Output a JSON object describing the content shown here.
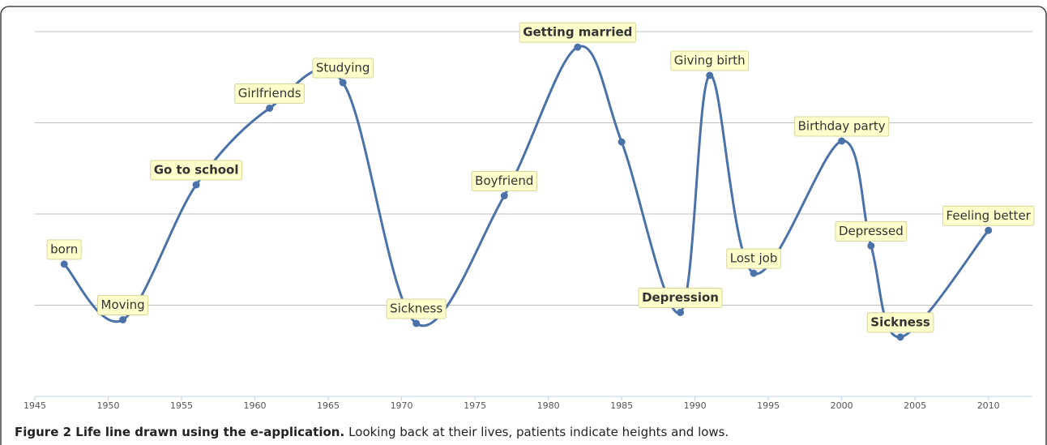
{
  "chart_data": {
    "type": "line",
    "x": [
      1947,
      1951,
      1956,
      1961,
      1966,
      1971,
      1977,
      1982,
      1985,
      1989,
      1991,
      1994,
      2000,
      2002,
      2004,
      2010
    ],
    "values": [
      1.45,
      0.84,
      2.32,
      3.16,
      3.44,
      0.8,
      2.2,
      3.83,
      2.79,
      0.92,
      3.52,
      1.35,
      2.8,
      1.65,
      0.65,
      1.82
    ],
    "labels": [
      "born",
      "Moving",
      "Go to school",
      "Girlfriends",
      "Studying",
      "Sickness",
      "Boyfriend",
      "Getting married",
      null,
      "Depression",
      "Giving birth",
      "Lost job",
      "Birthday party",
      "Depressed",
      "Sickness",
      "Feeling better"
    ],
    "bold_labels": [
      false,
      false,
      true,
      false,
      false,
      false,
      false,
      true,
      false,
      true,
      false,
      false,
      false,
      false,
      true,
      false
    ],
    "color": "#4a72a8",
    "xlim": [
      1945,
      2013
    ],
    "xticks": [
      1945,
      1950,
      1955,
      1960,
      1965,
      1970,
      1975,
      1980,
      1985,
      1990,
      1995,
      2000,
      2005,
      2010
    ],
    "ylim": [
      0,
      4
    ],
    "yticks": [
      1,
      2,
      3,
      4
    ],
    "grid": true,
    "caption_title": "Figure 2 Life line drawn using the e-application.",
    "caption_text": "Looking back at their lives, patients indicate heights and lows."
  }
}
